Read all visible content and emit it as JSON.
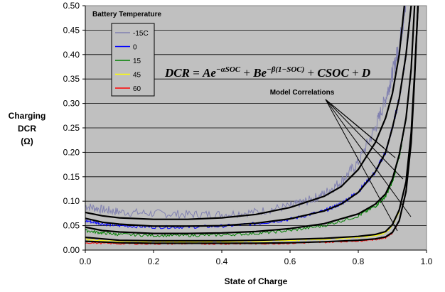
{
  "chart_data": {
    "type": "line",
    "xlabel": "State of Charge",
    "ylabel": [
      "Charging",
      "DCR",
      "(Ω)"
    ],
    "xlim": [
      0.0,
      1.0
    ],
    "ylim": [
      0.0,
      0.5
    ],
    "x_ticks": [
      "0.0",
      "0.2",
      "0.4",
      "0.6",
      "0.8",
      "1.0"
    ],
    "y_ticks": [
      "0.00",
      "0.05",
      "0.10",
      "0.15",
      "0.20",
      "0.25",
      "0.30",
      "0.35",
      "0.40",
      "0.45",
      "0.50"
    ],
    "grid": true,
    "plot_background": "#c0c0c0",
    "legend": {
      "title": "Battery Temperature",
      "placement": "top-left",
      "entries": [
        {
          "label": "-15C",
          "color": "#8080b0"
        },
        {
          "label": "0",
          "color": "#0000ff"
        },
        {
          "label": "15",
          "color": "#008000"
        },
        {
          "label": "45",
          "color": "#ffff00"
        },
        {
          "label": "60",
          "color": "#ff0000"
        }
      ]
    },
    "formula": "DCR = Ae^{-αSOC} + Be^{-β(1-SOC)} + CSOC + D",
    "annotation": "Model Correlations",
    "series": [
      {
        "name": "-15C",
        "color": "#8080b0",
        "x": [
          0.0,
          0.05,
          0.1,
          0.2,
          0.3,
          0.4,
          0.5,
          0.6,
          0.65,
          0.7,
          0.75,
          0.8,
          0.85,
          0.88,
          0.9,
          0.92,
          0.94
        ],
        "y": [
          0.09,
          0.083,
          0.078,
          0.075,
          0.073,
          0.073,
          0.078,
          0.09,
          0.1,
          0.115,
          0.14,
          0.18,
          0.25,
          0.31,
          0.36,
          0.42,
          0.5
        ]
      },
      {
        "name": "0",
        "color": "#0000ff",
        "x": [
          0.0,
          0.05,
          0.1,
          0.2,
          0.3,
          0.4,
          0.5,
          0.6,
          0.7,
          0.75,
          0.8,
          0.85,
          0.88,
          0.9,
          0.92,
          0.94,
          0.955
        ],
        "y": [
          0.06,
          0.054,
          0.05,
          0.047,
          0.047,
          0.049,
          0.054,
          0.063,
          0.08,
          0.095,
          0.12,
          0.16,
          0.2,
          0.25,
          0.31,
          0.4,
          0.5
        ]
      },
      {
        "name": "15",
        "color": "#008000",
        "x": [
          0.0,
          0.05,
          0.1,
          0.2,
          0.3,
          0.4,
          0.5,
          0.6,
          0.7,
          0.8,
          0.85,
          0.88,
          0.9,
          0.92,
          0.94,
          0.955,
          0.965
        ],
        "y": [
          0.04,
          0.035,
          0.032,
          0.03,
          0.03,
          0.031,
          0.034,
          0.04,
          0.05,
          0.07,
          0.09,
          0.11,
          0.14,
          0.19,
          0.27,
          0.37,
          0.5
        ]
      },
      {
        "name": "45",
        "color": "#ffff00",
        "x": [
          0.0,
          0.1,
          0.2,
          0.3,
          0.4,
          0.5,
          0.6,
          0.7,
          0.8,
          0.85,
          0.88,
          0.9,
          0.92,
          0.94,
          0.955,
          0.965,
          0.975
        ],
        "y": [
          0.022,
          0.018,
          0.017,
          0.017,
          0.017,
          0.018,
          0.02,
          0.022,
          0.026,
          0.03,
          0.036,
          0.05,
          0.08,
          0.14,
          0.24,
          0.36,
          0.5
        ]
      },
      {
        "name": "60",
        "color": "#ff0000",
        "x": [
          0.0,
          0.1,
          0.2,
          0.3,
          0.4,
          0.5,
          0.6,
          0.7,
          0.8,
          0.85,
          0.88,
          0.9,
          0.92,
          0.94,
          0.955,
          0.965,
          0.975
        ],
        "y": [
          0.015,
          0.013,
          0.013,
          0.013,
          0.013,
          0.013,
          0.014,
          0.016,
          0.019,
          0.022,
          0.026,
          0.035,
          0.06,
          0.12,
          0.22,
          0.35,
          0.5
        ]
      }
    ],
    "model_fits": [
      {
        "x": [
          0.0,
          0.05,
          0.1,
          0.2,
          0.3,
          0.4,
          0.5,
          0.6,
          0.7,
          0.75,
          0.8,
          0.85,
          0.88,
          0.9,
          0.92,
          0.935
        ],
        "y": [
          0.077,
          0.07,
          0.066,
          0.063,
          0.063,
          0.066,
          0.073,
          0.087,
          0.11,
          0.13,
          0.165,
          0.22,
          0.27,
          0.32,
          0.4,
          0.5
        ]
      },
      {
        "x": [
          0.0,
          0.05,
          0.1,
          0.2,
          0.3,
          0.4,
          0.5,
          0.6,
          0.7,
          0.75,
          0.8,
          0.85,
          0.88,
          0.9,
          0.92,
          0.94,
          0.955
        ],
        "y": [
          0.065,
          0.057,
          0.053,
          0.049,
          0.049,
          0.05,
          0.055,
          0.064,
          0.08,
          0.094,
          0.118,
          0.16,
          0.2,
          0.25,
          0.31,
          0.4,
          0.5
        ]
      },
      {
        "x": [
          0.0,
          0.05,
          0.1,
          0.2,
          0.3,
          0.4,
          0.5,
          0.6,
          0.7,
          0.8,
          0.85,
          0.88,
          0.9,
          0.92,
          0.94,
          0.955,
          0.965
        ],
        "y": [
          0.047,
          0.04,
          0.037,
          0.034,
          0.034,
          0.035,
          0.038,
          0.044,
          0.054,
          0.074,
          0.094,
          0.115,
          0.145,
          0.195,
          0.27,
          0.37,
          0.5
        ]
      },
      {
        "x": [
          0.0,
          0.1,
          0.2,
          0.3,
          0.4,
          0.5,
          0.6,
          0.7,
          0.8,
          0.85,
          0.88,
          0.9,
          0.92,
          0.94,
          0.955,
          0.965,
          0.975
        ],
        "y": [
          0.026,
          0.02,
          0.019,
          0.019,
          0.019,
          0.02,
          0.022,
          0.024,
          0.028,
          0.032,
          0.038,
          0.052,
          0.082,
          0.14,
          0.24,
          0.36,
          0.5
        ]
      },
      {
        "x": [
          0.0,
          0.1,
          0.2,
          0.3,
          0.4,
          0.5,
          0.6,
          0.7,
          0.8,
          0.85,
          0.88,
          0.9,
          0.92,
          0.94,
          0.955,
          0.965,
          0.975
        ],
        "y": [
          0.018,
          0.015,
          0.014,
          0.014,
          0.014,
          0.014,
          0.015,
          0.017,
          0.02,
          0.023,
          0.027,
          0.036,
          0.06,
          0.12,
          0.22,
          0.35,
          0.5
        ]
      }
    ]
  }
}
